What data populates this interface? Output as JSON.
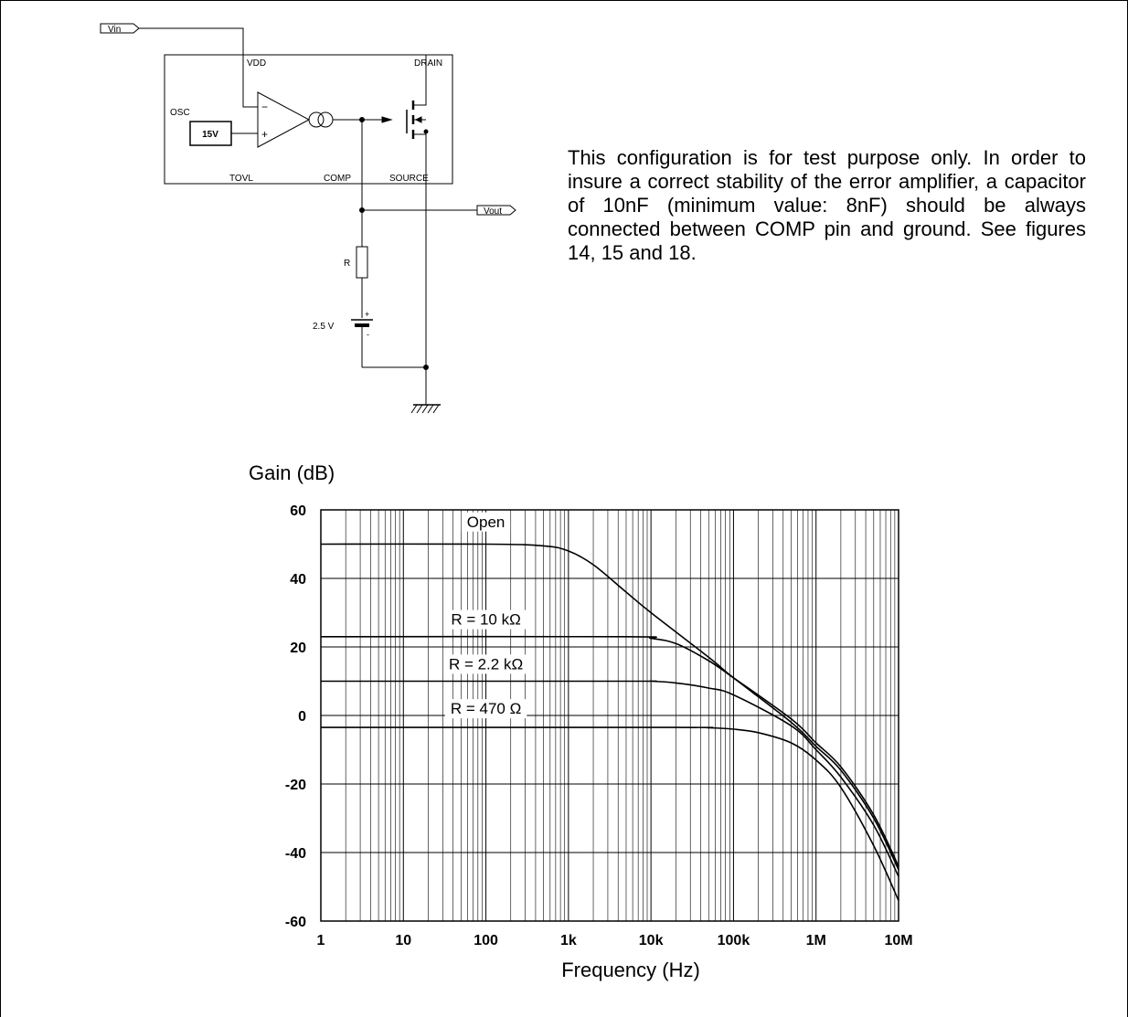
{
  "schematic": {
    "labels": {
      "vin": "Vin",
      "vdd": "VDD",
      "drain": "DRAIN",
      "osc": "OSC",
      "ref_voltage": "15V",
      "minus": "−",
      "plus": "+",
      "tovl": "TOVL",
      "comp": "COMP",
      "source": "SOURCE",
      "vout": "Vout",
      "resistor": "R",
      "battery": "2.5 V",
      "battery_plus": "+",
      "battery_minus": "-"
    }
  },
  "note": "This configuration is for test purpose only. In order to insure a correct stability of the error amplifier, a capacitor of 10nF (minimum value: 8nF) should be always connected between COMP pin and ground. See figures 14, 15 and 18.",
  "chart_data": {
    "type": "line",
    "title": "",
    "ylabel": "Gain (dB)",
    "xlabel": "Frequency (Hz)",
    "xscale": "log",
    "xlim": [
      1,
      10000000
    ],
    "ylim": [
      -60,
      60
    ],
    "grid": true,
    "x_ticks": [
      {
        "value": 1,
        "label": "1"
      },
      {
        "value": 10,
        "label": "10"
      },
      {
        "value": 100,
        "label": "100"
      },
      {
        "value": 1000,
        "label": "1k"
      },
      {
        "value": 10000,
        "label": "10k"
      },
      {
        "value": 100000,
        "label": "100k"
      },
      {
        "value": 1000000,
        "label": "1M"
      },
      {
        "value": 10000000,
        "label": "10M"
      }
    ],
    "y_ticks": [
      {
        "value": 60,
        "label": "60"
      },
      {
        "value": 40,
        "label": "40"
      },
      {
        "value": 20,
        "label": "20"
      },
      {
        "value": 0,
        "label": "0"
      },
      {
        "value": -20,
        "label": "-20"
      },
      {
        "value": -40,
        "label": "-40"
      },
      {
        "value": -60,
        "label": "-60"
      }
    ],
    "series": [
      {
        "name": "Open",
        "label_at": [
          100,
          55
        ],
        "x": [
          1,
          100,
          500,
          1000,
          2000,
          5000,
          10000,
          50000,
          100000,
          500000,
          1000000,
          2000000,
          5000000,
          10000000
        ],
        "y": [
          50,
          50,
          49.5,
          48,
          44,
          36,
          30,
          17,
          11,
          -2,
          -9,
          -16,
          -30,
          -45
        ]
      },
      {
        "name": "R = 10 kΩ",
        "label_at": [
          100,
          26.5
        ],
        "x": [
          1,
          5000,
          10000,
          20000,
          50000,
          100000,
          500000,
          1000000,
          2000000,
          5000000,
          10000000
        ],
        "y": [
          23,
          23,
          22.5,
          21,
          16,
          11,
          -1,
          -8,
          -15,
          -29,
          -44
        ]
      },
      {
        "name": "R = 2.2 kΩ",
        "label_at": [
          100,
          13.5
        ],
        "x": [
          1,
          5000,
          10000,
          20000,
          50000,
          100000,
          500000,
          1000000,
          2000000,
          5000000,
          10000000
        ],
        "y": [
          10,
          10,
          10,
          9.5,
          8,
          6,
          -3,
          -10,
          -18,
          -32,
          -47
        ]
      },
      {
        "name": "R = 470 Ω",
        "label_at": [
          100,
          0.5
        ],
        "x": [
          1,
          20000,
          50000,
          100000,
          200000,
          500000,
          1000000,
          2000000,
          5000000,
          10000000
        ],
        "y": [
          -3.5,
          -3.5,
          -3.6,
          -4,
          -5,
          -8,
          -13,
          -21,
          -38,
          -54
        ]
      }
    ]
  }
}
